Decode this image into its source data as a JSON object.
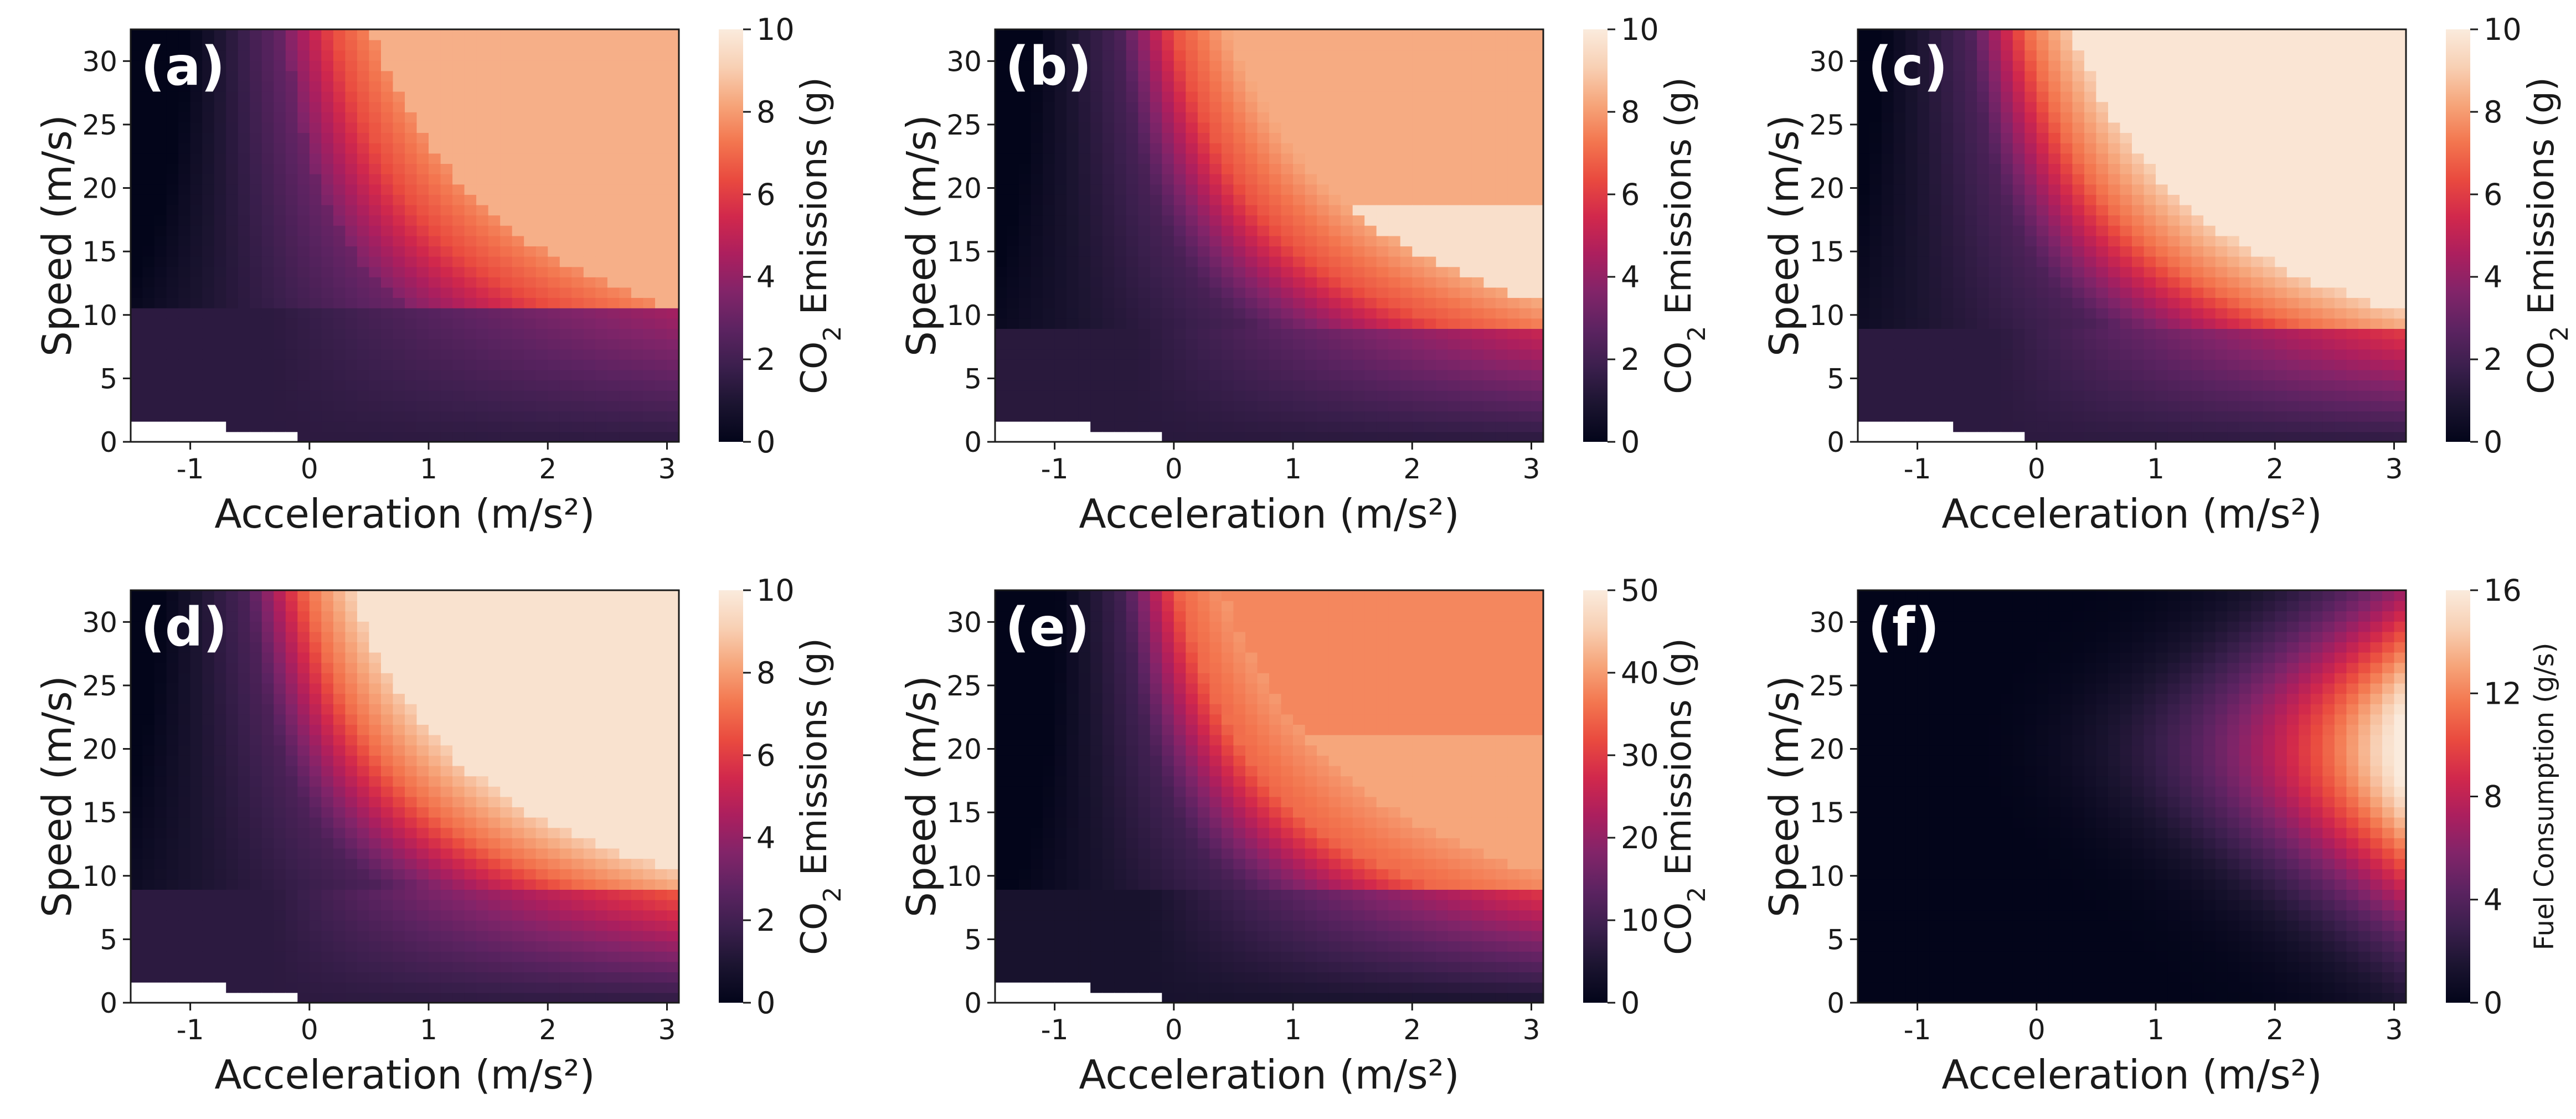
{
  "colors": {
    "cmap": [
      "#03051a",
      "#1b1430",
      "#3b1f4d",
      "#5c2361",
      "#822469",
      "#ac1f5e",
      "#d1284c",
      "#e94a3f",
      "#f3764f",
      "#f6a57a",
      "#f8d0b4",
      "#faebdd"
    ],
    "missing": "#ffffff"
  },
  "chart_data": [
    {
      "id": "a",
      "panel_label": "(a)",
      "type": "heatmap",
      "xlabel": "Acceleration (m/s²)",
      "ylabel": "Speed (m/s)",
      "xlim": [
        -1.5,
        3.1
      ],
      "ylim": [
        0,
        32.5
      ],
      "xticks": [
        -1,
        0,
        1,
        2,
        3
      ],
      "yticks": [
        0,
        5,
        10,
        15,
        20,
        25,
        30
      ],
      "colorbar": {
        "label_prefix": "CO",
        "label_sub": "2",
        "label_suffix": " Emissions (g)",
        "min": 0,
        "max": 10,
        "ticks": [
          0,
          2,
          4,
          6,
          8,
          10
        ]
      },
      "model": "co2_a"
    },
    {
      "id": "b",
      "panel_label": "(b)",
      "type": "heatmap",
      "xlabel": "Acceleration (m/s²)",
      "ylabel": "Speed (m/s)",
      "xlim": [
        -1.5,
        3.1
      ],
      "ylim": [
        0,
        32.5
      ],
      "xticks": [
        -1,
        0,
        1,
        2,
        3
      ],
      "yticks": [
        0,
        5,
        10,
        15,
        20,
        25,
        30
      ],
      "colorbar": {
        "label_prefix": "CO",
        "label_sub": "2",
        "label_suffix": " Emissions (g)",
        "min": 0,
        "max": 10,
        "ticks": [
          0,
          2,
          4,
          6,
          8,
          10
        ]
      },
      "model": "co2_b"
    },
    {
      "id": "c",
      "panel_label": "(c)",
      "type": "heatmap",
      "xlabel": "Acceleration (m/s²)",
      "ylabel": "Speed (m/s)",
      "xlim": [
        -1.5,
        3.1
      ],
      "ylim": [
        0,
        32.5
      ],
      "xticks": [
        -1,
        0,
        1,
        2,
        3
      ],
      "yticks": [
        0,
        5,
        10,
        15,
        20,
        25,
        30
      ],
      "colorbar": {
        "label_prefix": "CO",
        "label_sub": "2",
        "label_suffix": " Emissions (g)",
        "min": 0,
        "max": 10,
        "ticks": [
          0,
          2,
          4,
          6,
          8,
          10
        ]
      },
      "model": "co2_c"
    },
    {
      "id": "d",
      "panel_label": "(d)",
      "type": "heatmap",
      "xlabel": "Acceleration (m/s²)",
      "ylabel": "Speed (m/s)",
      "xlim": [
        -1.5,
        3.1
      ],
      "ylim": [
        0,
        32.5
      ],
      "xticks": [
        -1,
        0,
        1,
        2,
        3
      ],
      "yticks": [
        0,
        5,
        10,
        15,
        20,
        25,
        30
      ],
      "colorbar": {
        "label_prefix": "CO",
        "label_sub": "2",
        "label_suffix": " Emissions (g)",
        "min": 0,
        "max": 10,
        "ticks": [
          0,
          2,
          4,
          6,
          8,
          10
        ]
      },
      "model": "co2_d"
    },
    {
      "id": "e",
      "panel_label": "(e)",
      "type": "heatmap",
      "xlabel": "Acceleration (m/s²)",
      "ylabel": "Speed (m/s)",
      "xlim": [
        -1.5,
        3.1
      ],
      "ylim": [
        0,
        32.5
      ],
      "xticks": [
        -1,
        0,
        1,
        2,
        3
      ],
      "yticks": [
        0,
        5,
        10,
        15,
        20,
        25,
        30
      ],
      "colorbar": {
        "label_prefix": "CO",
        "label_sub": "2",
        "label_suffix": " Emissions (g)",
        "min": 0,
        "max": 50,
        "ticks": [
          0,
          10,
          20,
          30,
          40,
          50
        ]
      },
      "model": "co2_e"
    },
    {
      "id": "f",
      "panel_label": "(f)",
      "type": "heatmap",
      "xlabel": "Acceleration (m/s²)",
      "ylabel": "Speed (m/s)",
      "xlim": [
        -1.5,
        3.1
      ],
      "ylim": [
        0,
        32.5
      ],
      "xticks": [
        -1,
        0,
        1,
        2,
        3
      ],
      "yticks": [
        0,
        5,
        10,
        15,
        20,
        25,
        30
      ],
      "colorbar": {
        "label_prefix": "Fuel Consumption (g/s)",
        "label_sub": "",
        "label_suffix": "",
        "min": 0,
        "max": 16,
        "ticks": [
          0,
          4,
          8,
          12,
          16
        ]
      },
      "model": "fuel_f"
    }
  ]
}
